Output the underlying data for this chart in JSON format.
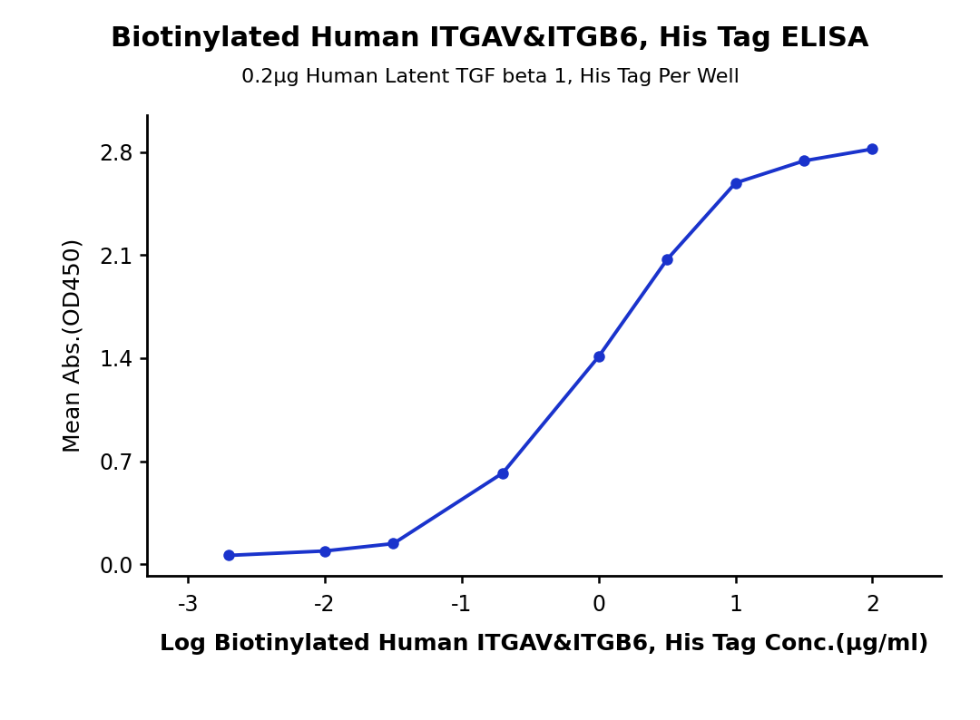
{
  "title": "Biotinylated Human ITGAV&ITGB6, His Tag ELISA",
  "subtitle": "0.2µg Human Latent TGF beta 1, His Tag Per Well",
  "xlabel": "Log Biotinylated Human ITGAV&ITGB6, His Tag Conc.(µg/ml)",
  "ylabel": "Mean Abs.(OD450)",
  "xlim": [
    -3.3,
    2.5
  ],
  "ylim": [
    -0.08,
    3.05
  ],
  "xticks": [
    -3,
    -2,
    -1,
    0,
    1,
    2
  ],
  "yticks": [
    0.0,
    0.7,
    1.4,
    2.1,
    2.8
  ],
  "data_x": [
    -2.7,
    -2.0,
    -1.5,
    -0.7,
    0.0,
    0.5,
    1.0,
    1.5,
    2.0
  ],
  "data_y": [
    0.06,
    0.09,
    0.14,
    0.62,
    1.41,
    2.07,
    2.59,
    2.74,
    2.82
  ],
  "line_color": "#1a33cc",
  "marker_color": "#1a33cc",
  "marker_size": 9,
  "line_width": 2.8,
  "title_fontsize": 22,
  "subtitle_fontsize": 16,
  "label_fontsize": 18,
  "tick_fontsize": 17,
  "background_color": "#ffffff",
  "spine_linewidth": 2.0
}
